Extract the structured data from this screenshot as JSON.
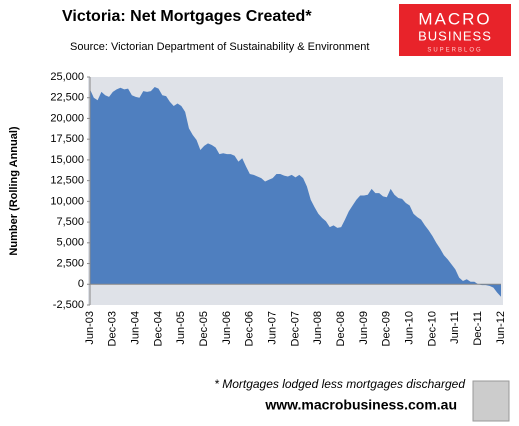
{
  "chart_data": {
    "type": "area",
    "title": "Victoria: Net Mortgages Created*",
    "subtitle": "Source: Victorian Department of Sustainability & Environment",
    "y_label": "Number (Rolling Annual)",
    "footnote": "* Mortgages lodged less mortgages discharged",
    "color": "#4f7fbf",
    "grid": false,
    "categories": [
      "Jun-03",
      null,
      null,
      null,
      null,
      null,
      "Dec-03",
      null,
      null,
      null,
      null,
      null,
      "Jun-04",
      null,
      null,
      null,
      null,
      null,
      "Dec-04",
      null,
      null,
      null,
      null,
      null,
      "Jun-05",
      null,
      null,
      null,
      null,
      null,
      "Dec-05",
      null,
      null,
      null,
      null,
      null,
      "Jun-06",
      null,
      null,
      null,
      null,
      null,
      "Dec-06",
      null,
      null,
      null,
      null,
      null,
      "Jun-07",
      null,
      null,
      null,
      null,
      null,
      "Dec-07",
      null,
      null,
      null,
      null,
      null,
      "Jun-08",
      null,
      null,
      null,
      null,
      null,
      "Dec-08",
      null,
      null,
      null,
      null,
      null,
      "Jun-09",
      null,
      null,
      null,
      null,
      null,
      "Dec-09",
      null,
      null,
      null,
      null,
      null,
      "Jun-10",
      null,
      null,
      null,
      null,
      null,
      "Dec-10",
      null,
      null,
      null,
      null,
      null,
      "Jun-11",
      null,
      null,
      null,
      null,
      null,
      "Dec-11",
      null,
      null,
      null,
      null,
      null,
      "Jun-12"
    ],
    "values": [
      23500,
      22500,
      22200,
      23200,
      22800,
      22600,
      23200,
      23500,
      23700,
      23500,
      23600,
      22800,
      22600,
      22500,
      23300,
      23200,
      23300,
      23800,
      23600,
      22800,
      22700,
      22000,
      21500,
      21800,
      21500,
      20800,
      18800,
      18000,
      17400,
      16200,
      16700,
      17000,
      16800,
      16500,
      15700,
      15800,
      15700,
      15700,
      15500,
      14800,
      15200,
      14200,
      13300,
      13200,
      13000,
      12800,
      12400,
      12600,
      12800,
      13300,
      13300,
      13100,
      13000,
      13200,
      12900,
      13200,
      12800,
      11800,
      10200,
      9300,
      8500,
      8000,
      7600,
      6900,
      7100,
      6800,
      6900,
      7800,
      8800,
      9500,
      10200,
      10700,
      10700,
      10800,
      11500,
      11000,
      11000,
      10600,
      10500,
      11500,
      10800,
      10400,
      10300,
      9800,
      9500,
      8500,
      8100,
      7800,
      7100,
      6500,
      5800,
      5000,
      4300,
      3500,
      3000,
      2400,
      1800,
      800,
      400,
      600,
      300,
      300,
      0,
      -100,
      -100,
      -200,
      -400,
      -1000,
      -1500
    ],
    "ylim": [
      -2500,
      25000
    ],
    "yticks": [
      {
        "value": -2500,
        "label": "-2,500"
      },
      0,
      {
        "value": 2500,
        "label": "2,500"
      },
      {
        "value": 5000,
        "label": "5,000"
      },
      {
        "value": 7500,
        "label": "7,500"
      },
      {
        "value": 10000,
        "label": "10,000"
      },
      {
        "value": 12500,
        "label": "12,500"
      },
      {
        "value": 15000,
        "label": "15,000"
      },
      {
        "value": 17500,
        "label": "17,500"
      },
      {
        "value": 20000,
        "label": "20,000"
      },
      {
        "value": 22500,
        "label": "22,500"
      },
      {
        "value": 25000,
        "label": "25,000"
      }
    ]
  },
  "logo": {
    "line1": "MACRO",
    "line2": "BUSINESS",
    "line3": "SUPERBLOG"
  },
  "website": "www.macrobusiness.com.au"
}
